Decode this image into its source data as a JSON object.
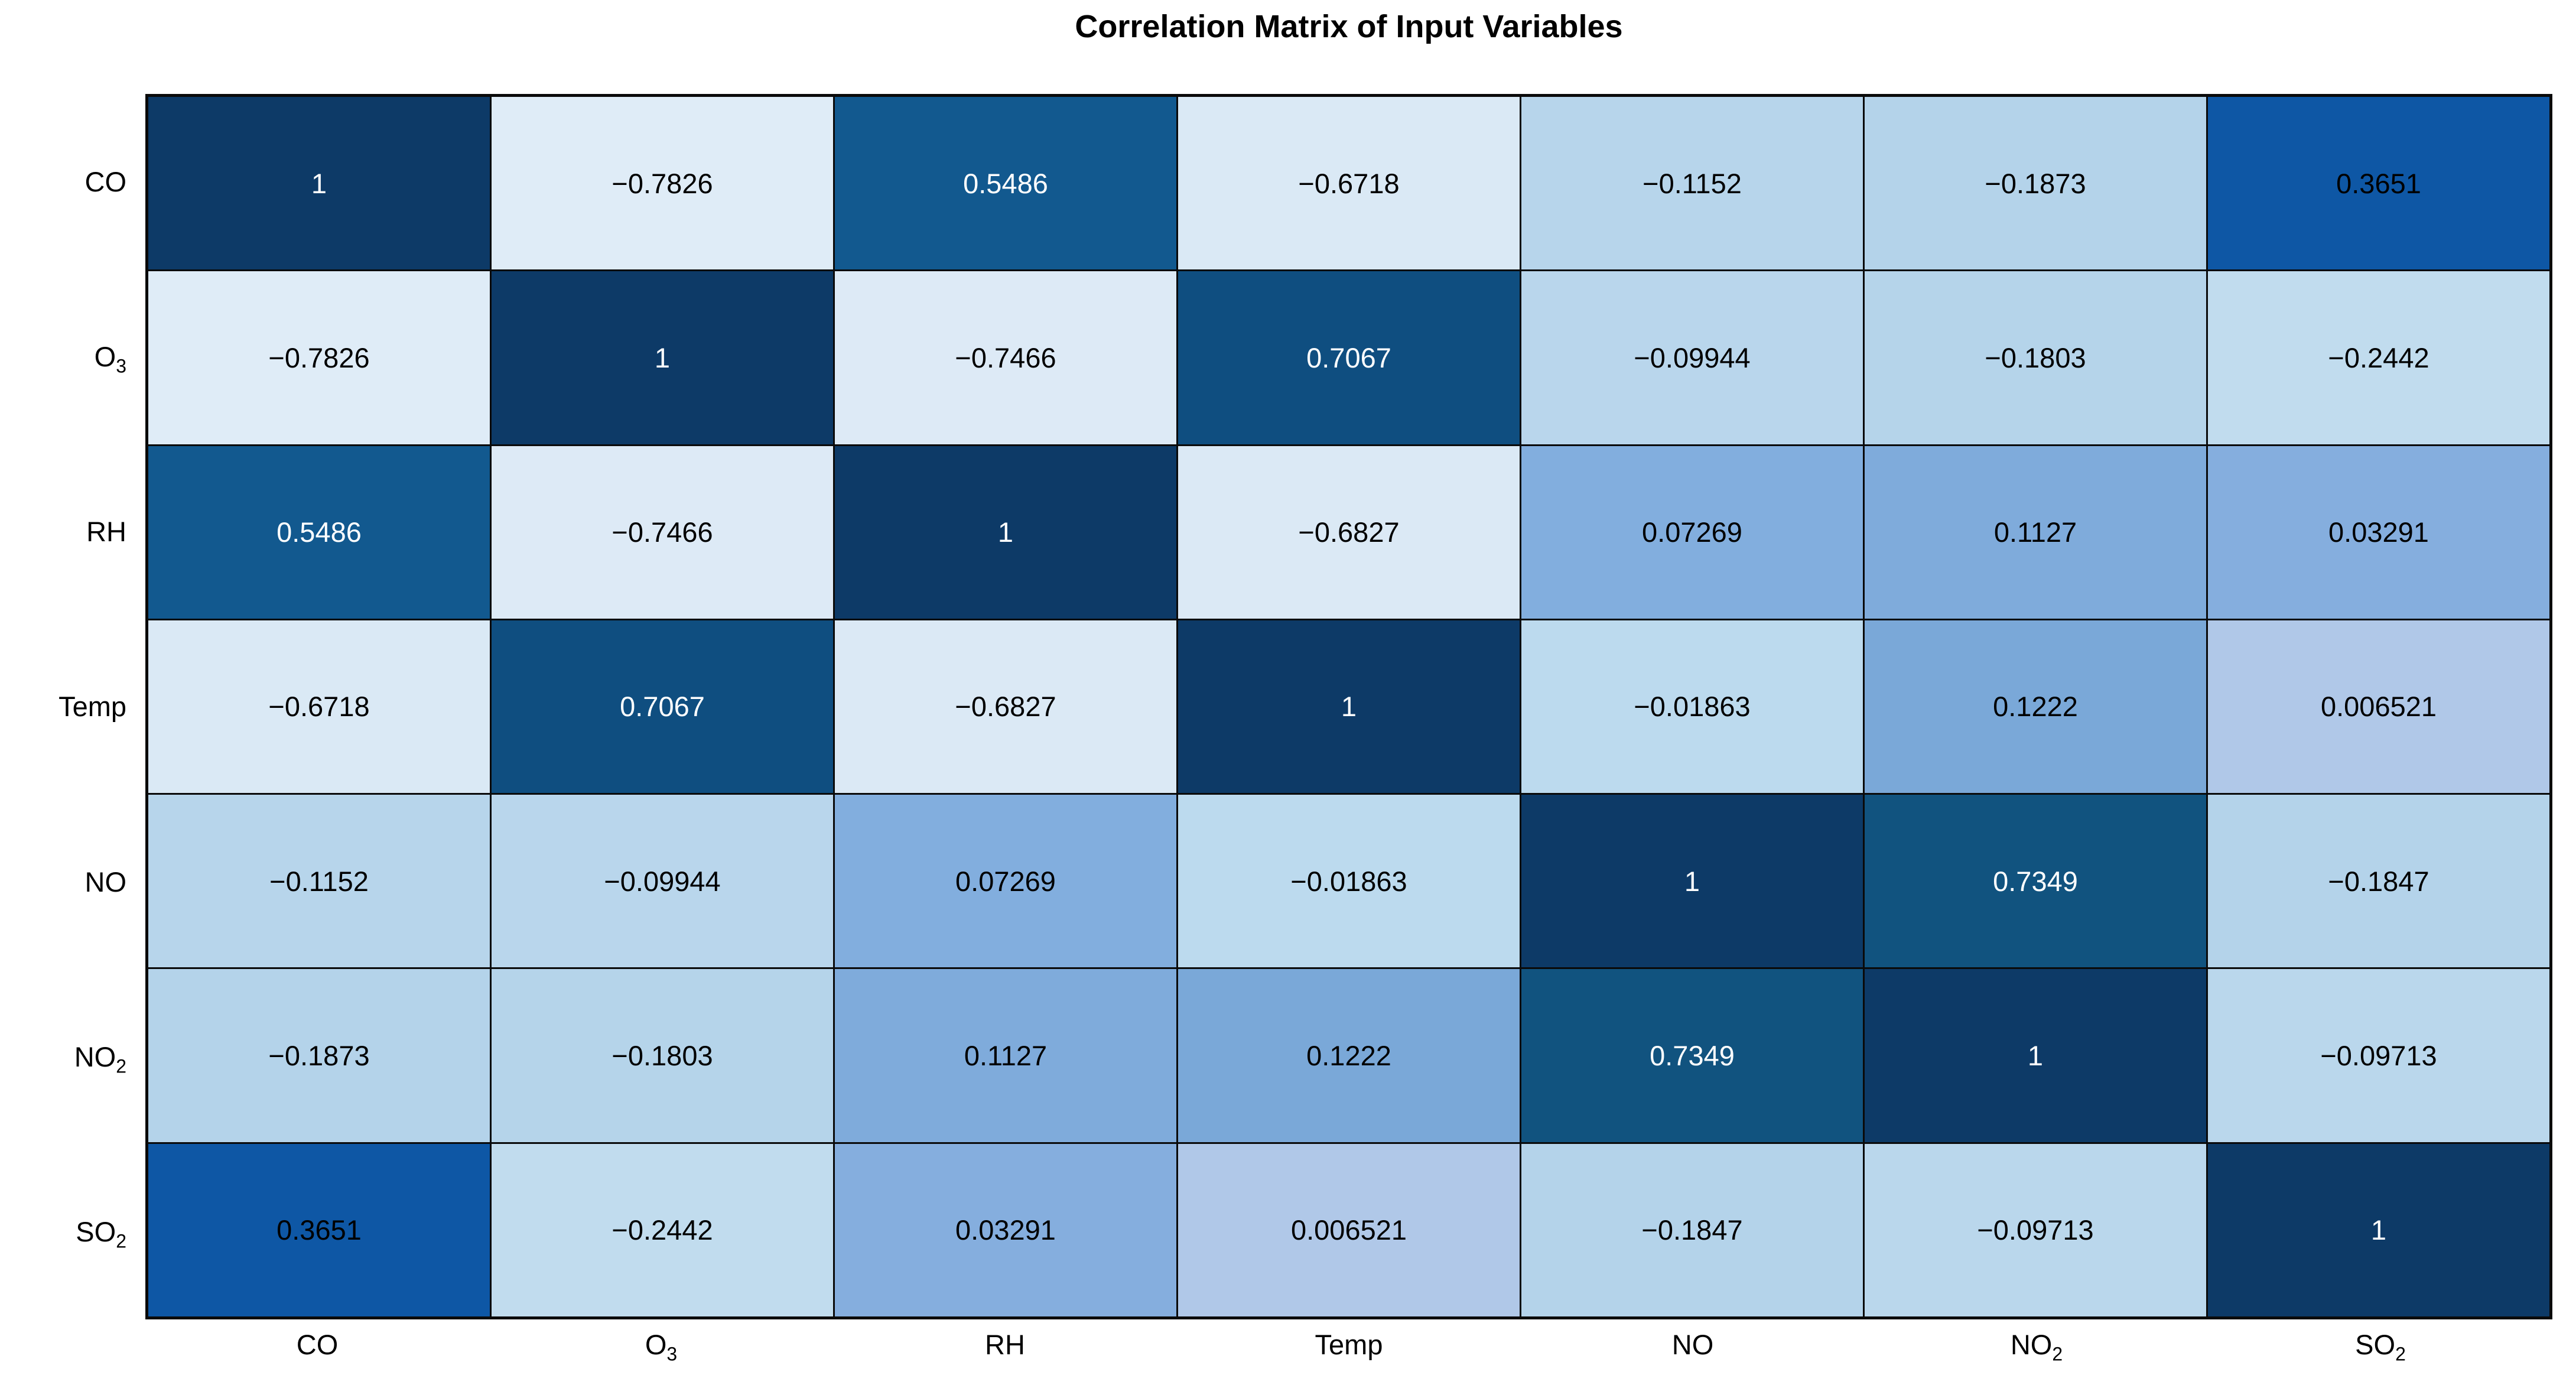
{
  "chart_data": {
    "type": "heatmap",
    "title": "Correlation Matrix of Input Variables",
    "x_categories": [
      "CO",
      "O|3",
      "RH",
      "Temp",
      "NO",
      "NO|2",
      "SO|2"
    ],
    "y_categories": [
      "CO",
      "O|3",
      "RH",
      "Temp",
      "NO",
      "NO|2",
      "SO|2"
    ],
    "matrix_values": [
      [
        1,
        -0.7826,
        0.5486,
        -0.6718,
        -0.1152,
        -0.1873,
        0.3651
      ],
      [
        -0.7826,
        1,
        -0.7466,
        0.7067,
        -0.09944,
        -0.1803,
        -0.2442
      ],
      [
        0.5486,
        -0.7466,
        1,
        -0.6827,
        0.07269,
        0.1127,
        0.03291
      ],
      [
        -0.6718,
        0.7067,
        -0.6827,
        1,
        -0.01863,
        0.1222,
        0.006521
      ],
      [
        -0.1152,
        -0.09944,
        0.07269,
        -0.01863,
        1,
        0.7349,
        -0.1847
      ],
      [
        -0.1873,
        -0.1803,
        0.1127,
        0.1222,
        0.7349,
        1,
        -0.09713
      ],
      [
        0.3651,
        -0.2442,
        0.03291,
        0.006521,
        -0.1847,
        -0.09713,
        1
      ]
    ],
    "matrix_labels": [
      [
        "1",
        "−0.7826",
        "0.5486",
        "−0.6718",
        "−0.1152",
        "−0.1873",
        "0.3651"
      ],
      [
        "−0.7826",
        "1",
        "−0.7466",
        "0.7067",
        "−0.09944",
        "−0.1803",
        "−0.2442"
      ],
      [
        "0.5486",
        "−0.7466",
        "1",
        "−0.6827",
        "0.07269",
        "0.1127",
        "0.03291"
      ],
      [
        "−0.6718",
        "0.7067",
        "−0.6827",
        "1",
        "−0.01863",
        "0.1222",
        "0.006521"
      ],
      [
        "−0.1152",
        "−0.09944",
        "0.07269",
        "−0.01863",
        "1",
        "0.7349",
        "−0.1847"
      ],
      [
        "−0.1873",
        "−0.1803",
        "0.1127",
        "0.1222",
        "0.7349",
        "1",
        "−0.09713"
      ],
      [
        "0.3651",
        "−0.2442",
        "0.03291",
        "0.006521",
        "−0.1847",
        "−0.09713",
        "1"
      ]
    ],
    "color_scale": {
      "description": "sequential blues: light blue = strong negative, dark navy = strong positive",
      "min": -1,
      "max": 1
    },
    "cell_colors": {
      "1": {
        "bg": "#0d3a67",
        "fg": "#ffffff"
      },
      "0.7349": {
        "bg": "#11537f",
        "fg": "#ffffff"
      },
      "0.7067": {
        "bg": "#0f4e80",
        "fg": "#ffffff"
      },
      "0.5486": {
        "bg": "#12598f",
        "fg": "#ffffff"
      },
      "0.3651": {
        "bg": "#0e57a5",
        "fg": "#000000"
      },
      "0.1222": {
        "bg": "#7aa8d8",
        "fg": "#000000"
      },
      "0.1127": {
        "bg": "#7fabdb",
        "fg": "#000000"
      },
      "0.07269": {
        "bg": "#82aede",
        "fg": "#000000"
      },
      "0.03291": {
        "bg": "#85aede",
        "fg": "#000000"
      },
      "0.006521": {
        "bg": "#b0c8e8",
        "fg": "#000000"
      },
      "−0.01863": {
        "bg": "#bcdaee",
        "fg": "#000000"
      },
      "−0.09713": {
        "bg": "#bad7ec",
        "fg": "#000000"
      },
      "−0.09944": {
        "bg": "#b9d6ec",
        "fg": "#000000"
      },
      "−0.1152": {
        "bg": "#b7d5eb",
        "fg": "#000000"
      },
      "−0.1803": {
        "bg": "#b5d4ea",
        "fg": "#000000"
      },
      "−0.1847": {
        "bg": "#b4d3ea",
        "fg": "#000000"
      },
      "−0.1873": {
        "bg": "#b4d3ea",
        "fg": "#000000"
      },
      "−0.2442": {
        "bg": "#c1dcee",
        "fg": "#000000"
      },
      "−0.6718": {
        "bg": "#dae9f5",
        "fg": "#000000"
      },
      "−0.6827": {
        "bg": "#dbe9f5",
        "fg": "#000000"
      },
      "−0.7466": {
        "bg": "#ddeaf6",
        "fg": "#000000"
      },
      "−0.7826": {
        "bg": "#dfecf7",
        "fg": "#000000"
      }
    },
    "styling": {
      "grid_line_color": "#0a0a0a",
      "axis_box_color": "#0a0a0a",
      "label_color": "#000000",
      "background": "#ffffff"
    }
  }
}
